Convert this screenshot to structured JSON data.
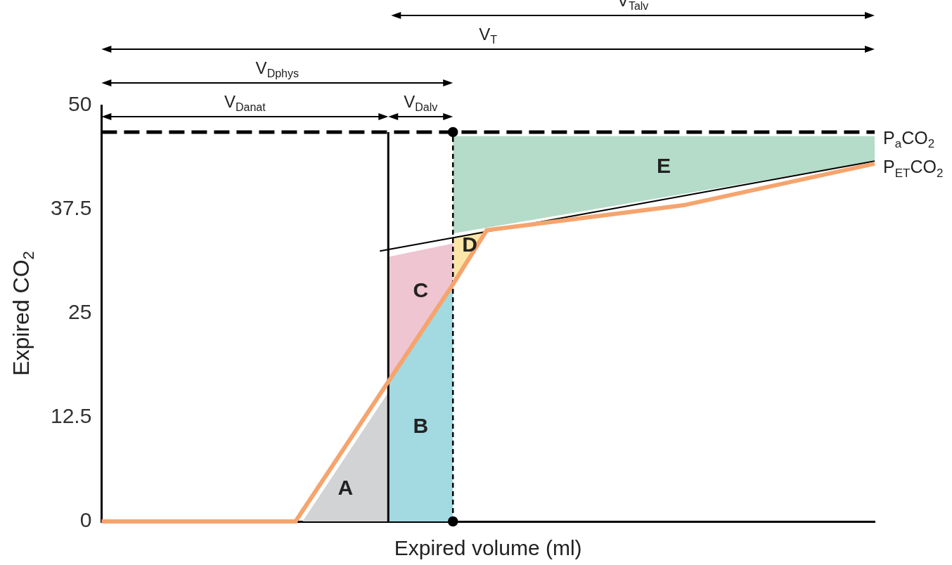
{
  "chart_data": {
    "type": "line",
    "x_label": "Expired volume (ml)",
    "y_label": "Expired CO2",
    "xlim": [
      0,
      550
    ],
    "ylim": [
      0,
      50
    ],
    "yticks": [
      0,
      12.5,
      25,
      37.5,
      50
    ],
    "grid": false,
    "tick_labels": "y",
    "series": [
      {
        "color": "#f6a46e",
        "x": [
          0,
          138,
          250,
          274,
          414,
          550
        ],
        "values": [
          0,
          0,
          28.5,
          35,
          38,
          43
        ]
      },
      {
        "name": "PaCO2",
        "color": "#000000",
        "line_style": "dashed",
        "x": [
          0,
          550
        ],
        "values": [
          46.8,
          46.8
        ]
      },
      {
        "name": "PETCO2",
        "color": "#000000",
        "x": [
          198,
          550
        ],
        "values": [
          32.5,
          43.3
        ]
      },
      {
        "color": "#000000",
        "x": [
          204,
          204
        ],
        "values": [
          0,
          46.8
        ]
      },
      {
        "color": "#000000",
        "line_style": "dashed",
        "marker": "circle",
        "x": [
          250,
          250
        ],
        "values": [
          0,
          46.8
        ]
      }
    ],
    "regions": [
      {
        "label": "A",
        "color": "#d1d3d4",
        "x": [
          143,
          204
        ],
        "lower": [
          0,
          0
        ],
        "upper": [
          0,
          15.5
        ]
      },
      {
        "label": "B",
        "color": "#a3d9e1",
        "x": [
          204,
          250
        ],
        "lower": [
          0,
          0
        ],
        "upper": [
          16.8,
          28.5
        ]
      },
      {
        "label": "C",
        "color": "#efc5d2",
        "x": [
          204,
          250
        ],
        "lower": [
          16.8,
          28.5
        ],
        "upper": [
          31.8,
          33.4
        ]
      },
      {
        "label": "D",
        "color": "#fbe6a8",
        "x": [
          250,
          274
        ],
        "lower": [
          28.5,
          35
        ],
        "upper": [
          34.1,
          35
        ]
      },
      {
        "label": "E",
        "color": "#b4dcc8",
        "x": [
          250,
          550
        ],
        "lower": [
          34.6,
          43.3
        ],
        "upper": [
          46.3,
          46.3
        ]
      }
    ],
    "spans": [
      {
        "label": "VTalv",
        "x": [
          206,
          550
        ]
      },
      {
        "label": "VT",
        "x": [
          0,
          550
        ]
      },
      {
        "label": "VDphys",
        "x": [
          0,
          250
        ]
      },
      {
        "label": "VDanat",
        "x": [
          0,
          204
        ]
      },
      {
        "label": "VDalv",
        "x": [
          204,
          250
        ]
      }
    ]
  }
}
